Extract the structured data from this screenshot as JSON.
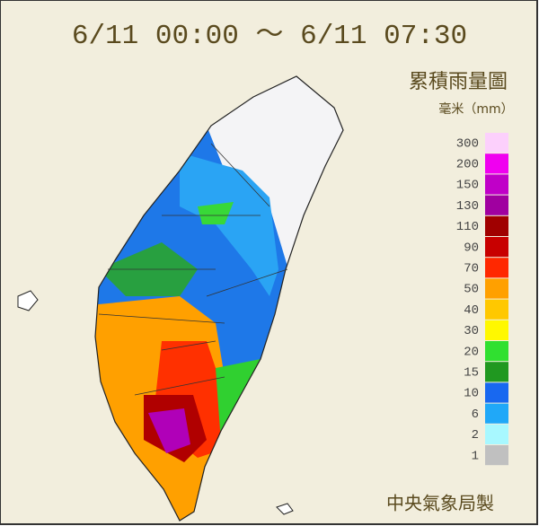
{
  "header": {
    "title": "6/11 00:00 ～ 6/11 07:30"
  },
  "legend": {
    "title": "累積雨量圖",
    "unit": "毫米（mm）",
    "items": [
      {
        "label": 300,
        "color": "#fcd0fc"
      },
      {
        "label": 200,
        "color": "#f000f0"
      },
      {
        "label": 150,
        "color": "#c000c8"
      },
      {
        "label": 130,
        "color": "#a000a0"
      },
      {
        "label": 110,
        "color": "#a00000"
      },
      {
        "label": 90,
        "color": "#c80000"
      },
      {
        "label": 70,
        "color": "#ff2800"
      },
      {
        "label": 50,
        "color": "#ffa000"
      },
      {
        "label": 40,
        "color": "#ffc800"
      },
      {
        "label": 30,
        "color": "#fff800"
      },
      {
        "label": 20,
        "color": "#30e030"
      },
      {
        "label": 15,
        "color": "#209820"
      },
      {
        "label": 10,
        "color": "#1868f0"
      },
      {
        "label": 6,
        "color": "#20a8f8"
      },
      {
        "label": 2,
        "color": "#a8f8ff"
      },
      {
        "label": 1,
        "color": "#c0c0c0"
      }
    ]
  },
  "footer": {
    "credit": "中央氣象局製"
  }
}
